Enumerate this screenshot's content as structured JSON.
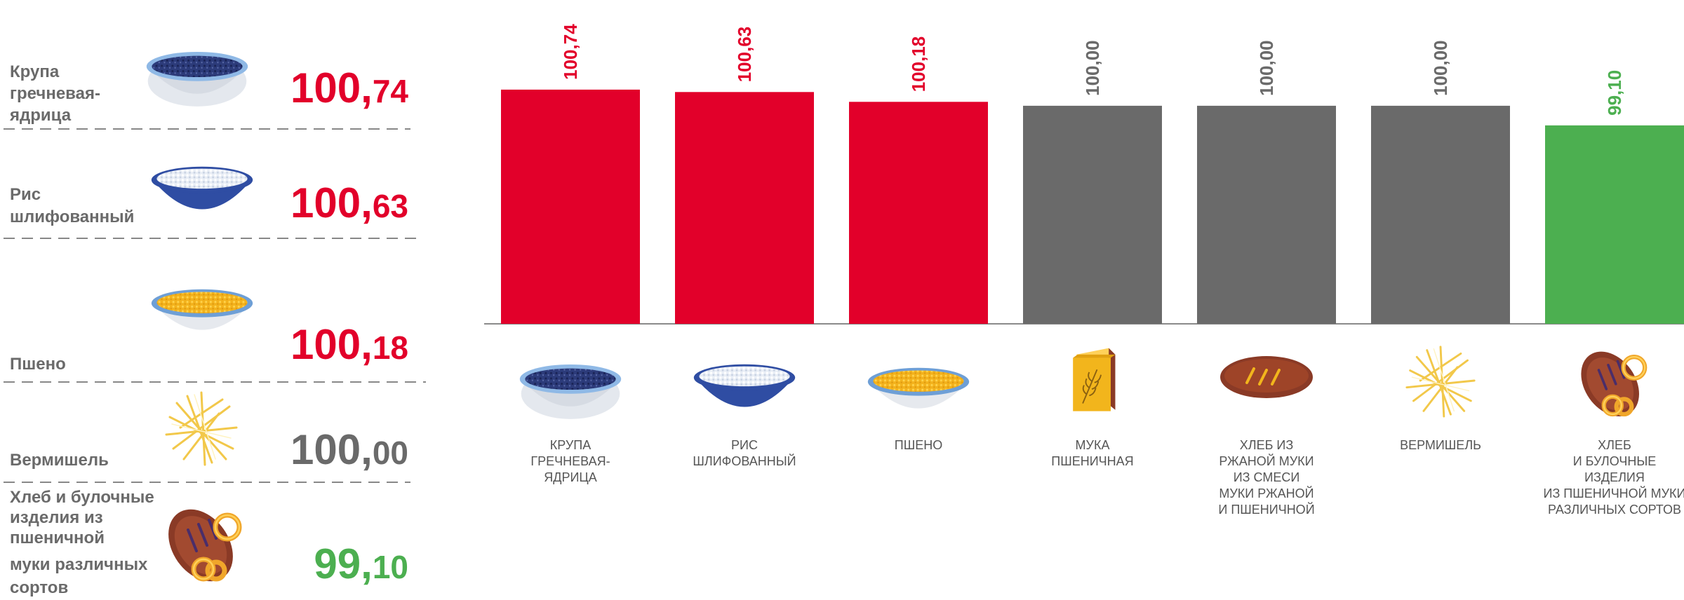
{
  "colors": {
    "up": "#e2002a",
    "flat": "#6a6a6a",
    "down": "#4caf50",
    "bowl_rim": "#7fb2e0",
    "bowl_body": "#2f4da3"
  },
  "left_list": [
    {
      "lines": [
        "Крупа",
        "гречневая-",
        "ядрица"
      ],
      "int": "100,",
      "dec": "74",
      "status": "up",
      "icon": "buckwheat-bowl-icon"
    },
    {
      "lines": [
        "Рис",
        "шлифованный"
      ],
      "int": "100,",
      "dec": "63",
      "status": "up",
      "icon": "rice-bowl-icon"
    },
    {
      "lines": [
        "Пшено"
      ],
      "int": "100,",
      "dec": "18",
      "status": "up",
      "icon": "millet-bowl-icon"
    },
    {
      "lines": [
        "Вермишель"
      ],
      "int": "100,",
      "dec": "00",
      "status": "flat",
      "icon": "vermicelli-icon"
    },
    {
      "lines": [
        "Хлеб и булочные",
        "изделия из",
        "пшеничной",
        "муки различных",
        "сортов"
      ],
      "int": "99,",
      "dec": "10",
      "status": "down",
      "icon": "bread-pretzel-icon"
    }
  ],
  "chart_data": {
    "type": "bar",
    "categories": [
      "КРУПА ГРЕЧНЕВАЯ-ЯДРИЦА",
      "РИС ШЛИФОВАННЫЙ",
      "ПШЕНО",
      "МУКА ПШЕНИЧНАЯ",
      "ХЛЕБ ИЗ РЖАНОЙ МУКИ ИЗ СМЕСИ МУКИ РЖАНОЙ И ПШЕНИЧНОЙ",
      "ВЕРМИШЕЛЬ",
      "ХЛЕБ И БУЛОЧНЫЕ ИЗДЕЛИЯ ИЗ ПШЕНИЧНОЙ МУКИ РАЗЛИЧНЫХ СОРТОВ"
    ],
    "category_lines": [
      [
        "КРУПА",
        "ГРЕЧНЕВАЯ-",
        "ЯДРИЦА"
      ],
      [
        "РИС",
        "ШЛИФОВАННЫЙ"
      ],
      [
        "ПШЕНО"
      ],
      [
        "МУКА",
        "ПШЕНИЧНАЯ"
      ],
      [
        "ХЛЕБ ИЗ",
        "РЖАНОЙ МУКИ",
        "ИЗ СМЕСИ",
        "МУКИ РЖАНОЙ",
        "И  ПШЕНИЧНОЙ"
      ],
      [
        "ВЕРМИШЕЛЬ"
      ],
      [
        "ХЛЕБ",
        "И БУЛОЧНЫЕ",
        "ИЗДЕЛИЯ",
        "ИЗ ПШЕНИЧНОЙ МУКИ",
        "РАЗЛИЧНЫХ СОРТОВ"
      ]
    ],
    "values": [
      100.74,
      100.63,
      100.18,
      100.0,
      100.0,
      100.0,
      99.1
    ],
    "value_labels": [
      "100,74",
      "100,63",
      "100,18",
      "100,00",
      "100,00",
      "100,00",
      "99,10"
    ],
    "status": [
      "up",
      "up",
      "up",
      "flat",
      "flat",
      "flat",
      "down"
    ],
    "icons": [
      "buckwheat-bowl-icon",
      "rice-bowl-icon",
      "millet-bowl-icon",
      "flour-pack-icon",
      "rye-bread-icon",
      "vermicelli-icon",
      "bread-pretzel-icon"
    ],
    "ylim": [
      90,
      101.7
    ],
    "grid": false,
    "legend": "none"
  }
}
